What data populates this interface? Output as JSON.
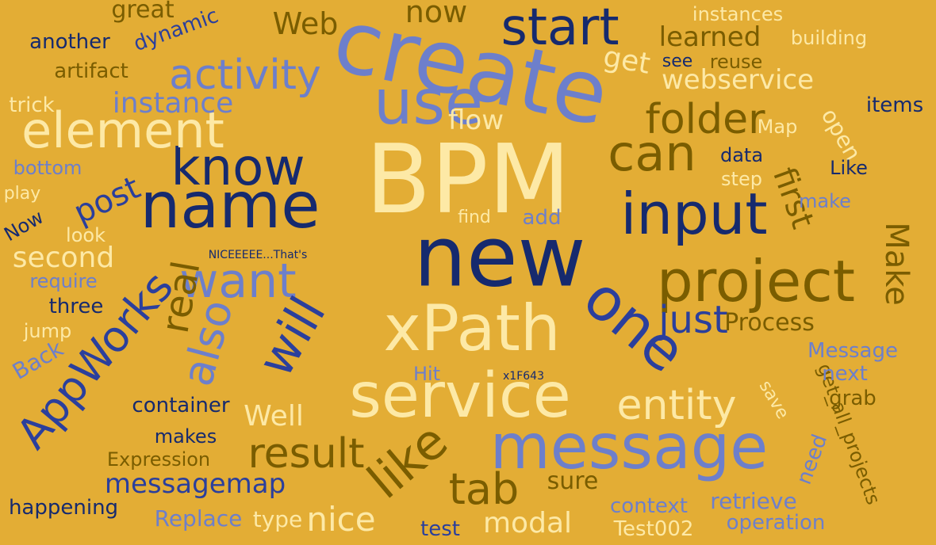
{
  "palette": {
    "background": "#e3ad35",
    "navy": "#162a6e",
    "royal": "#2b3f9c",
    "periwinkle": "#6d7fcb",
    "cream": "#fde9a6",
    "olive": "#7a5d00"
  },
  "words": [
    "BPM",
    "create",
    "new",
    "input",
    "name",
    "use",
    "start",
    "xPath",
    "service",
    "message",
    "know",
    "one",
    "project",
    "element",
    "want",
    "activity",
    "AppWorks",
    "will",
    "can",
    "folder",
    "like",
    "also",
    "just",
    "entity",
    "result",
    "messagemap",
    "tab",
    "Web",
    "webservice",
    "first",
    "post",
    "instance",
    "Make",
    "real",
    "now",
    "learned",
    "modal",
    "Process",
    "get_all_projects",
    "Well",
    "second",
    "flow",
    "retrieve",
    "Test002",
    "Back",
    "operation",
    "Replace",
    "context",
    "happening",
    "container",
    "nice",
    "get",
    "dynamic",
    "great",
    "another",
    "artifact",
    "trick",
    "reuse",
    "see",
    "items",
    "open",
    "Map",
    "data",
    "building",
    "instances",
    "test",
    "sure",
    "Expression",
    "makes",
    "type",
    "three",
    "jump",
    "require",
    "look",
    "Now",
    "bottom",
    "play",
    "step",
    "Like",
    "make",
    "find",
    "add",
    "next",
    "grab",
    "Message",
    "Hit",
    "need",
    "save",
    "x1F643",
    "NICEEEEE...That's"
  ]
}
